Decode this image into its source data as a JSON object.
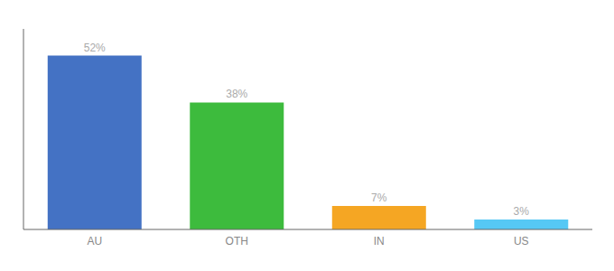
{
  "chart_data": {
    "type": "bar",
    "categories": [
      "AU",
      "OTH",
      "IN",
      "US"
    ],
    "values": [
      52,
      38,
      7,
      3
    ],
    "value_labels": [
      "52%",
      "38%",
      "7%",
      "3%"
    ],
    "colors": [
      "#4472c4",
      "#3dbb3d",
      "#f5a623",
      "#56c8f5"
    ],
    "ylim": [
      0,
      60
    ],
    "yticks": [],
    "data_labels": true,
    "tick_labels": "x",
    "grid": false
  }
}
